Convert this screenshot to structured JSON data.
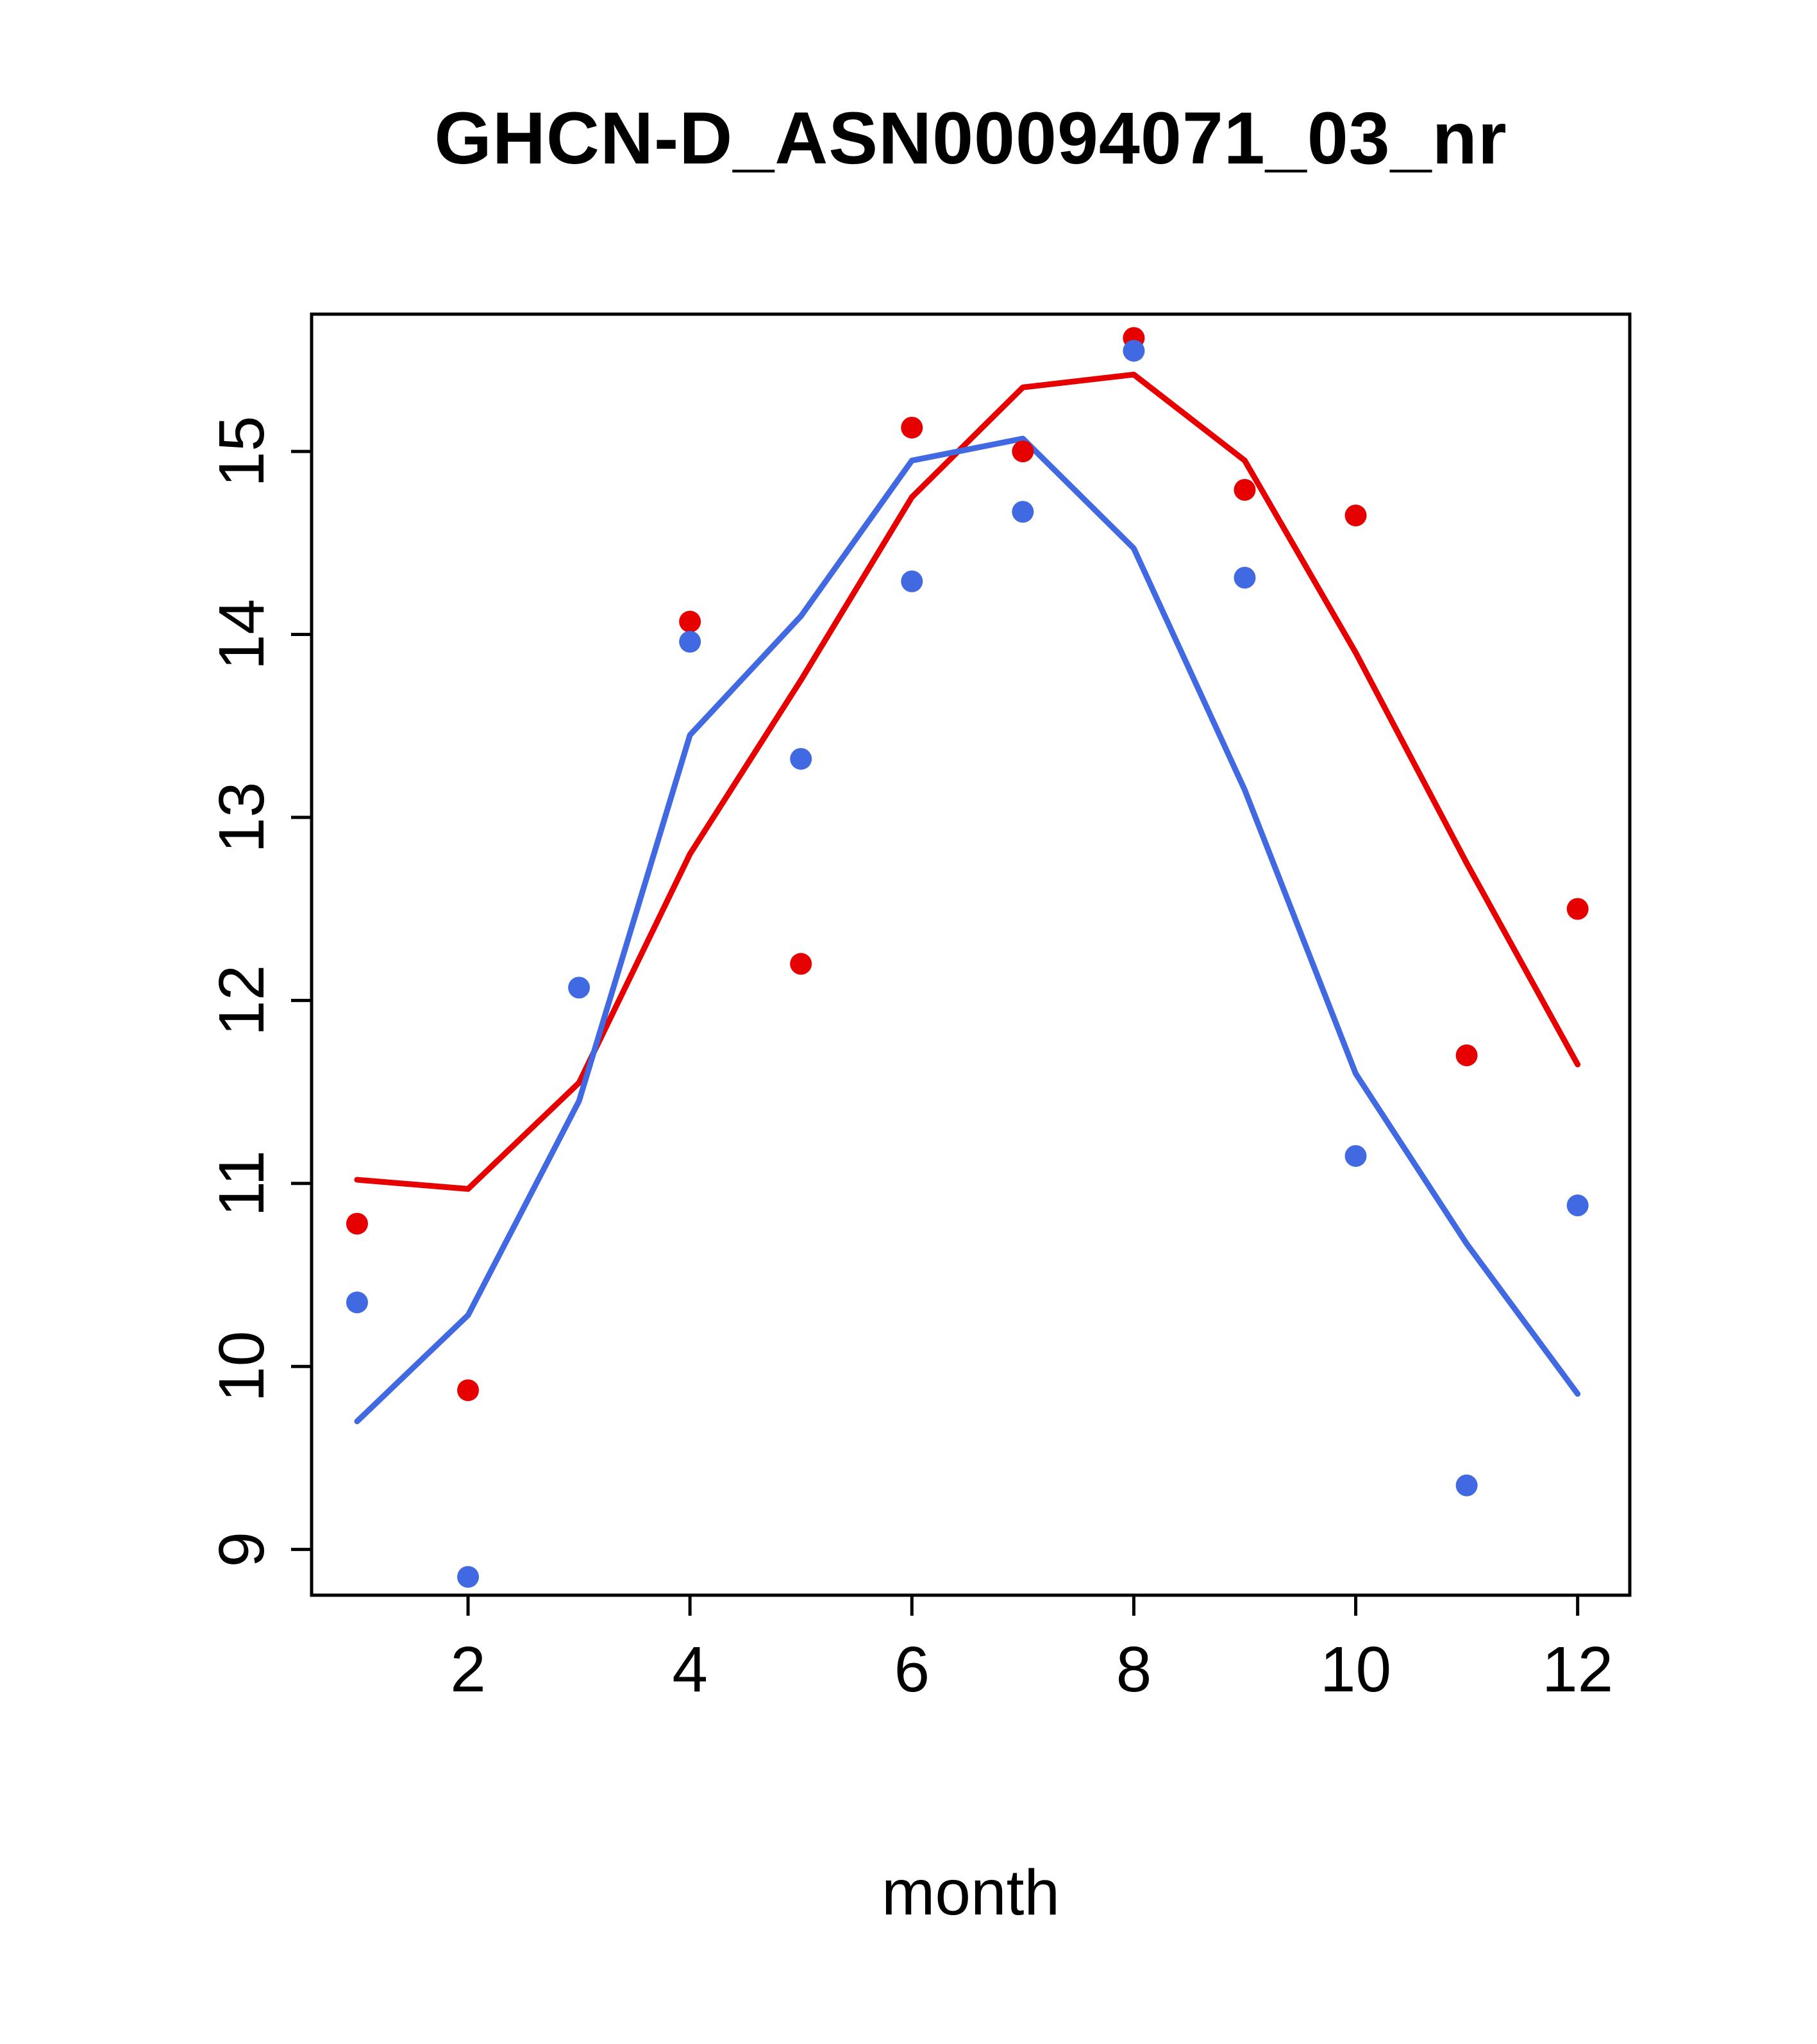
{
  "title": "GHCN-D_ASN00094071_03_nr",
  "chart_data": {
    "type": "line",
    "title": "GHCN-D_ASN00094071_03_nr",
    "xlabel": "month",
    "ylabel": "",
    "x": [
      1,
      2,
      3,
      4,
      5,
      6,
      7,
      8,
      9,
      10,
      11,
      12
    ],
    "xticks": [
      2,
      4,
      6,
      8,
      10,
      12
    ],
    "yticks": [
      9,
      10,
      11,
      12,
      13,
      14,
      15
    ],
    "xlim": [
      0.59,
      12.47
    ],
    "ylim": [
      8.75,
      15.75
    ],
    "grid": false,
    "legend": "none",
    "colors": {
      "red": "#e60000",
      "blue": "#4169e1",
      "axis": "#000000"
    },
    "series": [
      {
        "name": "red-line",
        "type": "line",
        "color": "#e60000",
        "values": [
          11.02,
          10.97,
          11.55,
          12.8,
          13.75,
          14.75,
          15.35,
          15.42,
          14.95,
          13.9,
          12.75,
          11.65
        ]
      },
      {
        "name": "blue-line",
        "type": "line",
        "color": "#4169e1",
        "values": [
          9.7,
          10.28,
          11.45,
          13.45,
          14.1,
          14.95,
          15.07,
          14.47,
          13.15,
          11.6,
          10.67,
          9.85
        ]
      },
      {
        "name": "red-points",
        "type": "scatter",
        "color": "#e60000",
        "values": [
          10.78,
          9.87,
          null,
          14.07,
          12.2,
          15.13,
          15.0,
          15.62,
          14.79,
          14.65,
          11.7,
          12.5
        ]
      },
      {
        "name": "blue-points",
        "type": "scatter",
        "color": "#4169e1",
        "values": [
          10.35,
          8.85,
          12.07,
          13.96,
          13.32,
          14.29,
          14.67,
          15.55,
          14.31,
          11.15,
          9.35,
          10.88
        ]
      }
    ]
  }
}
